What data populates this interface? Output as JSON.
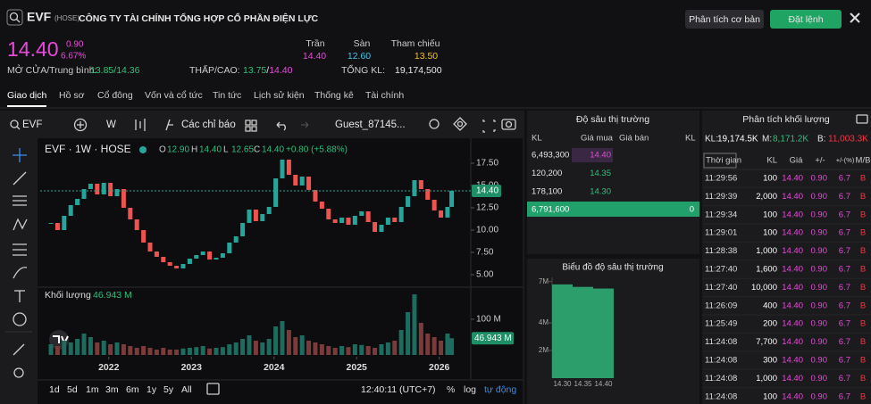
{
  "header": {
    "symbol": "EVF",
    "exchange": "(HOSE)",
    "company": "CÔNG TY TÀI CHÍNH TỔNG HỢP CỔ PHẦN ĐIỆN LỰC",
    "buttons": [
      "Phân tích cơ bản",
      "Đặt lệnh"
    ]
  },
  "quote": {
    "price": "14.40",
    "change": "0.90",
    "change_pct": "6.67%",
    "ceiling": {
      "label": "Trần",
      "value": "14.40"
    },
    "floor": {
      "label": "Sàn",
      "value": "12.60"
    },
    "reference": {
      "label": "Tham chiếu",
      "value": "13.50"
    },
    "open_avg": {
      "label": "MỞ CỬA/Trung bình:",
      "value": "13.85/14.36"
    },
    "low_high": {
      "label": "THẤP/CAO:",
      "low": "13.75",
      "separator": "/",
      "high": "14.40"
    },
    "total_volume": {
      "label": "TỔNG KL:",
      "value": "19,174,500"
    }
  },
  "tabs": [
    "Giao dịch",
    "Hồ sơ",
    "Cổ đông",
    "Vốn và cổ tức",
    "Tin tức",
    "Lịch sử kiện",
    "Thống kê",
    "Tài chính"
  ],
  "chart_toolbar": {
    "symbol": "EVF",
    "interval": "W",
    "indicators": "Các chỉ báo",
    "layout": "Guest_87145..."
  },
  "chart_legend": {
    "title": "EVF · 1W · HOSE",
    "ohlc": [
      {
        "label": "O",
        "value": "12.90"
      },
      {
        "label": "H",
        "value": "14.40"
      },
      {
        "label": "L",
        "value": "12.65"
      },
      {
        "label": "C",
        "value": "14.40"
      }
    ],
    "change": "+0.80 (+5.88%)"
  },
  "chart_data": [
    {
      "type": "candlestick",
      "x": [
        2021.3,
        2021.38,
        2021.46,
        2021.54,
        2021.62,
        2021.7,
        2021.78,
        2021.86,
        2021.94,
        2022.02,
        2022.1,
        2022.18,
        2022.26,
        2022.34,
        2022.42,
        2022.5,
        2022.58,
        2022.66,
        2022.74,
        2022.82,
        2022.9,
        2022.98,
        2023.06,
        2023.14,
        2023.22,
        2023.3,
        2023.38,
        2023.46,
        2023.54,
        2023.62,
        2023.7,
        2023.78,
        2023.86,
        2023.94,
        2024.02,
        2024.1,
        2024.18,
        2024.26,
        2024.34,
        2024.42,
        2024.5,
        2024.58,
        2024.66,
        2024.74,
        2024.82,
        2024.9,
        2024.98,
        2025.06,
        2025.14,
        2025.22,
        2025.3,
        2025.38,
        2025.46,
        2025.54,
        2025.62,
        2025.7,
        2025.78,
        2025.86,
        2025.94,
        2026.02,
        2026.1,
        2026.15
      ],
      "values": [
        10.8,
        10.0,
        11.6,
        12.8,
        13.5,
        14.6,
        15.2,
        14.0,
        15.3,
        13.8,
        14.6,
        12.5,
        11.2,
        10.0,
        8.6,
        7.6,
        7.0,
        6.4,
        6.0,
        5.7,
        6.2,
        6.8,
        7.2,
        7.6,
        6.7,
        6.9,
        7.4,
        8.6,
        9.3,
        10.8,
        12.3,
        11.0,
        11.8,
        12.6,
        15.8,
        17.9,
        16.2,
        15.0,
        16.0,
        14.5,
        13.2,
        12.4,
        11.2,
        10.8,
        11.4,
        10.6,
        11.6,
        12.1,
        10.9,
        9.8,
        10.6,
        11.4,
        10.9,
        12.6,
        13.8,
        15.6,
        14.6,
        13.4,
        12.2,
        11.4,
        12.6,
        14.4
      ],
      "up_color": "#26a69a",
      "down_color": "#ef5350",
      "xlim": [
        2021.17,
        2026.36
      ],
      "ylim": [
        3.6,
        20.3
      ],
      "yticks": [
        {
          "value": 17.5,
          "label": "17.50"
        },
        {
          "value": 15,
          "label": "15.00"
        },
        {
          "value": 12.5,
          "label": "12.50"
        },
        {
          "value": 10,
          "label": "10.00"
        },
        {
          "value": 7.5,
          "label": "7.50"
        },
        {
          "value": 5,
          "label": "5.00"
        }
      ],
      "last_label": {
        "value": 14.4,
        "label": "14.40"
      }
    },
    {
      "type": "bar",
      "title": "Khối lượng",
      "subtitle": "46.943 M",
      "x": [
        2021.3,
        2021.38,
        2021.46,
        2021.54,
        2021.62,
        2021.7,
        2021.78,
        2021.86,
        2021.94,
        2022.02,
        2022.1,
        2022.18,
        2022.26,
        2022.34,
        2022.42,
        2022.5,
        2022.58,
        2022.66,
        2022.74,
        2022.82,
        2022.9,
        2022.98,
        2023.06,
        2023.14,
        2023.22,
        2023.3,
        2023.38,
        2023.46,
        2023.54,
        2023.62,
        2023.7,
        2023.78,
        2023.86,
        2023.94,
        2024.02,
        2024.1,
        2024.18,
        2024.26,
        2024.34,
        2024.42,
        2024.5,
        2024.58,
        2024.66,
        2024.74,
        2024.82,
        2024.9,
        2024.98,
        2025.06,
        2025.14,
        2025.22,
        2025.3,
        2025.38,
        2025.46,
        2025.54,
        2025.62,
        2025.7,
        2025.78,
        2025.86,
        2025.94,
        2026.02,
        2026.1,
        2026.15
      ],
      "values": [
        30,
        25,
        40,
        35,
        45,
        60,
        50,
        35,
        40,
        30,
        35,
        30,
        25,
        20,
        25,
        20,
        15,
        20,
        15,
        15,
        18,
        20,
        22,
        25,
        18,
        20,
        22,
        30,
        35,
        45,
        55,
        40,
        35,
        45,
        80,
        95,
        70,
        50,
        55,
        40,
        35,
        30,
        25,
        20,
        25,
        22,
        30,
        28,
        25,
        20,
        30,
        35,
        40,
        70,
        120,
        170,
        90,
        60,
        50,
        40,
        60,
        46.943
      ],
      "color": "#7a3b3b",
      "xlim": [
        2021.17,
        2026.36
      ],
      "ylim": [
        0,
        190
      ],
      "xticks": [
        2022,
        2023,
        2024,
        2025,
        2026
      ],
      "yticks": [
        {
          "value": 100,
          "label": "100 M"
        }
      ],
      "last_label": {
        "value": 46.943,
        "label": "46.943 M"
      }
    },
    {
      "type": "bar",
      "title": "Biểu đồ độ sâu thị trường",
      "categories": [
        "14.30",
        "14.35",
        "14.40"
      ],
      "values": [
        6.79,
        6.61,
        6.49
      ],
      "color": "#2c9e6c",
      "ylim": [
        0,
        7.3
      ],
      "yticks": [
        {
          "value": 7,
          "label": "7M"
        },
        {
          "value": 4,
          "label": "4M"
        },
        {
          "value": 2,
          "label": "2M"
        }
      ]
    }
  ],
  "time_ranges": [
    "1d",
    "5d",
    "1m",
    "3m",
    "6m",
    "1y",
    "5y",
    "All"
  ],
  "clock": "12:40:11 (UTC+7)",
  "scale_options": [
    "%",
    "log",
    "tự động"
  ],
  "order_book": {
    "title": "Độ sâu thị trường",
    "columns": [
      "KL",
      "Giá mua",
      "Giá bán",
      "KL"
    ],
    "rows": [
      [
        "6,493,300",
        "14.40"
      ],
      [
        "120,200",
        "14.35"
      ],
      [
        "178,100",
        "14.30"
      ]
    ],
    "total": [
      "6,791,600",
      "0"
    ]
  },
  "volume_analysis": {
    "title": "Phân tích khối lượng",
    "summary": [
      {
        "label": "KL:",
        "value": "19,174.5K"
      },
      {
        "label": "M:",
        "value": "8,171.2K"
      },
      {
        "label": "B:",
        "value": "11,003.3K"
      }
    ],
    "columns": [
      "Thời gian",
      "KL",
      "Giá",
      "+/-",
      "+/-(%)",
      "M/B"
    ],
    "rows": [
      [
        "11:29:56",
        "100",
        "14.40",
        "0.90",
        "6.7",
        "B"
      ],
      [
        "11:29:39",
        "2,000",
        "14.40",
        "0.90",
        "6.7",
        "B"
      ],
      [
        "11:29:34",
        "100",
        "14.40",
        "0.90",
        "6.7",
        "B"
      ],
      [
        "11:29:01",
        "100",
        "14.40",
        "0.90",
        "6.7",
        "B"
      ],
      [
        "11:28:38",
        "1,000",
        "14.40",
        "0.90",
        "6.7",
        "B"
      ],
      [
        "11:27:40",
        "1,600",
        "14.40",
        "0.90",
        "6.7",
        "B"
      ],
      [
        "11:27:40",
        "10,000",
        "14.40",
        "0.90",
        "6.7",
        "B"
      ],
      [
        "11:26:09",
        "400",
        "14.40",
        "0.90",
        "6.7",
        "B"
      ],
      [
        "11:25:49",
        "200",
        "14.40",
        "0.90",
        "6.7",
        "B"
      ],
      [
        "11:24:08",
        "7,700",
        "14.40",
        "0.90",
        "6.7",
        "B"
      ],
      [
        "11:24:08",
        "300",
        "14.40",
        "0.90",
        "6.7",
        "B"
      ],
      [
        "11:24:08",
        "1,000",
        "14.40",
        "0.90",
        "6.7",
        "B"
      ],
      [
        "11:24:08",
        "100",
        "14.40",
        "0.90",
        "6.7",
        "B"
      ]
    ]
  }
}
